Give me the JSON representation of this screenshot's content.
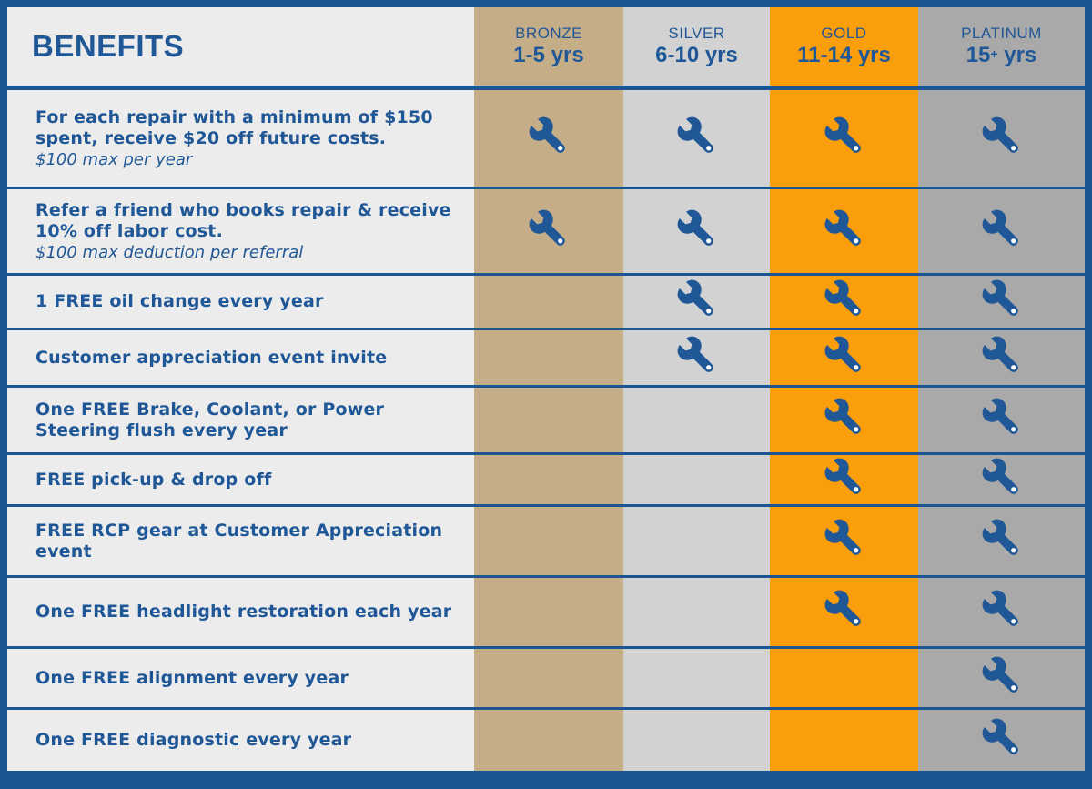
{
  "header": {
    "title": "BENEFITS",
    "tiers": [
      {
        "name": "BRONZE",
        "years": "1-5 yrs",
        "sup": ""
      },
      {
        "name": "SILVER",
        "years": "6-10 yrs",
        "sup": ""
      },
      {
        "name": "GOLD",
        "years": "11-14 yrs",
        "sup": ""
      },
      {
        "name": "PLATINUM",
        "years_pre": "15",
        "sup": "+",
        "years_post": " yrs"
      }
    ]
  },
  "colors": {
    "border": "#1d5592",
    "text": "#1f5797",
    "benefit_bg": "#ececec",
    "bronze": "#c5ad88",
    "silver": "#d2d2d2",
    "gold": "#fa9e0c",
    "platinum": "#a9a9a9"
  },
  "icon": "wrench-icon",
  "rows": [
    {
      "main": "For each repair with a minimum of $150 spent, receive $20 off future costs.",
      "sub": "$100 max per year",
      "tiers": [
        true,
        true,
        true,
        true
      ]
    },
    {
      "main": "Refer a friend who books repair & receive 10% off labor cost.",
      "sub": "$100 max deduction per referral",
      "tiers": [
        true,
        true,
        true,
        true
      ]
    },
    {
      "main": "1 FREE oil change every year",
      "sub": "",
      "tiers": [
        false,
        true,
        true,
        true
      ]
    },
    {
      "main": "Customer appreciation event invite",
      "sub": "",
      "tiers": [
        false,
        true,
        true,
        true
      ]
    },
    {
      "main": "One FREE Brake, Coolant, or Power Steering flush every year",
      "sub": "",
      "tiers": [
        false,
        false,
        true,
        true
      ]
    },
    {
      "main": "FREE pick-up & drop off",
      "sub": "",
      "tiers": [
        false,
        false,
        true,
        true
      ]
    },
    {
      "main": "FREE RCP gear at Customer Appreciation event",
      "sub": "",
      "tiers": [
        false,
        false,
        true,
        true
      ]
    },
    {
      "main": "One FREE headlight restoration each year",
      "sub": "",
      "tiers": [
        false,
        false,
        true,
        true
      ]
    },
    {
      "main": "One FREE alignment every year",
      "sub": "",
      "tiers": [
        false,
        false,
        false,
        true
      ]
    },
    {
      "main": "One FREE diagnostic every year",
      "sub": "",
      "tiers": [
        false,
        false,
        false,
        true
      ]
    }
  ]
}
